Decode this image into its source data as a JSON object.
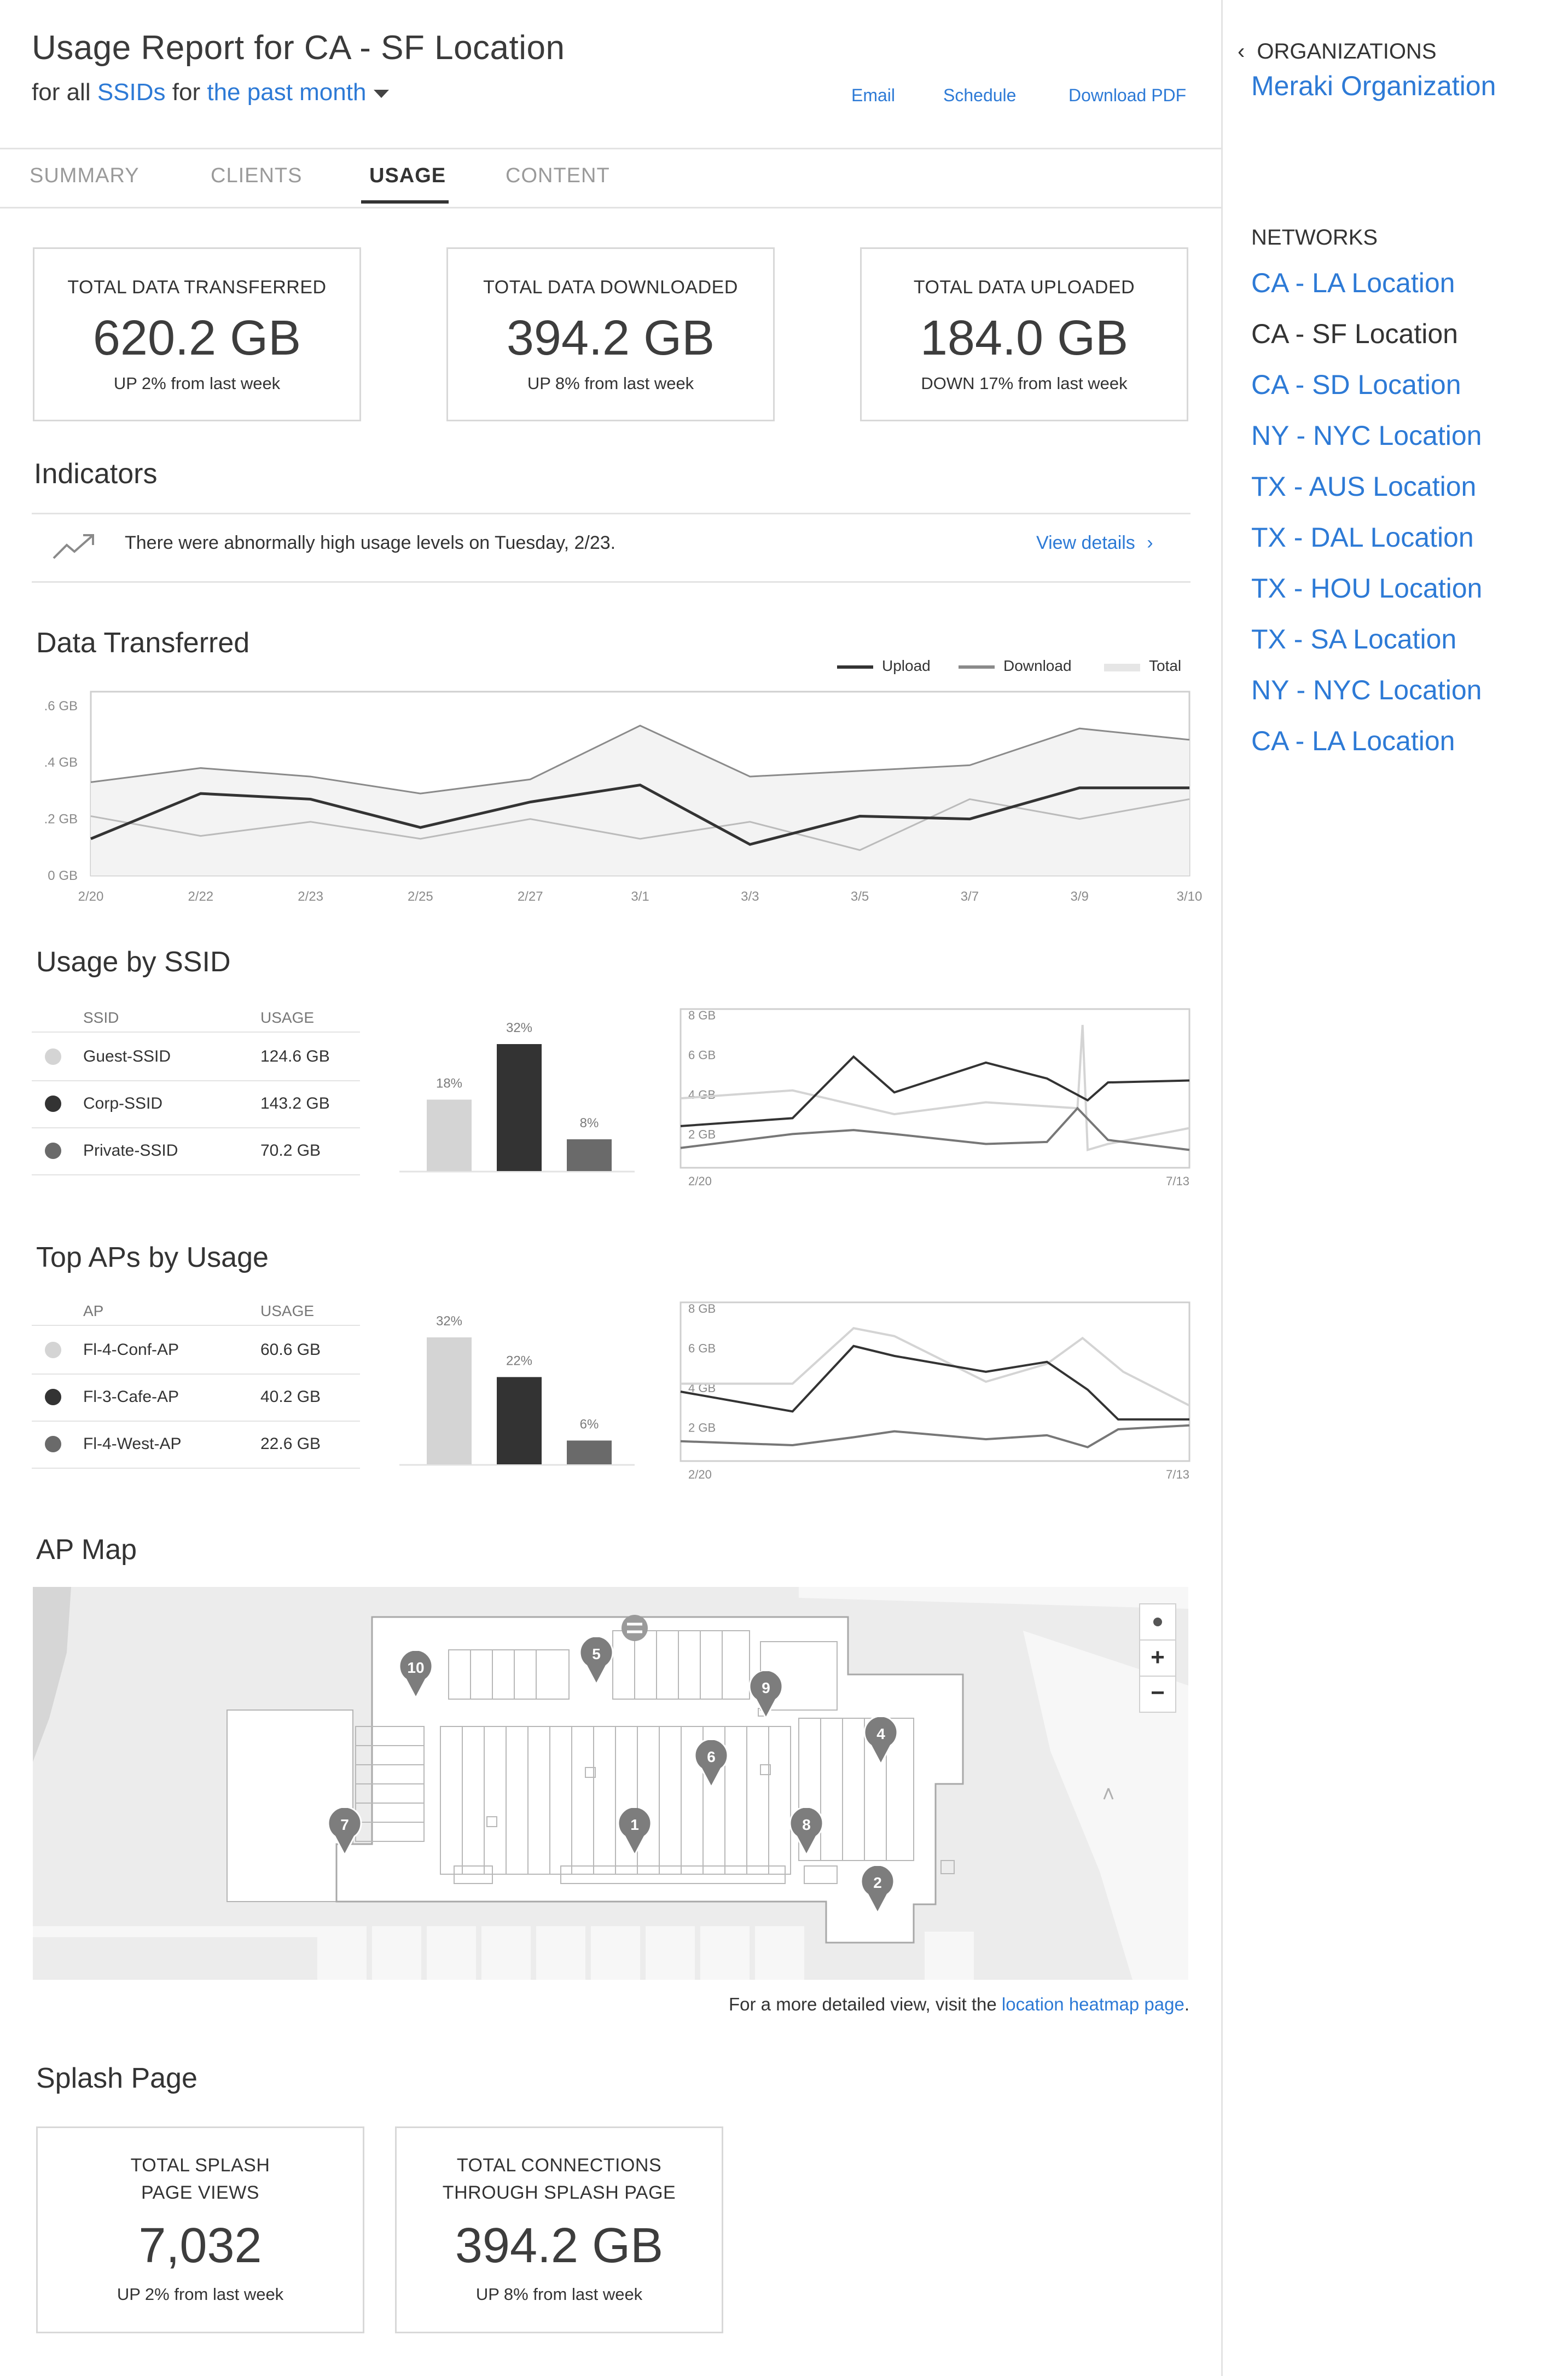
{
  "header": {
    "title": "Usage Report for CA - SF Location",
    "subtitle_prefix": "for all",
    "ssids_link": "SSIDs",
    "subtitle_mid": "for",
    "period_link": "the past month",
    "actions": {
      "email": "Email",
      "schedule": "Schedule",
      "download_pdf": "Download PDF"
    }
  },
  "tabs": [
    {
      "label": "SUMMARY",
      "active": false
    },
    {
      "label": "CLIENTS",
      "active": false
    },
    {
      "label": "USAGE",
      "active": true
    },
    {
      "label": "CONTENT",
      "active": false
    }
  ],
  "stats": [
    {
      "label": "TOTAL DATA TRANSFERRED",
      "value": "620.2 GB",
      "change": "UP 2% from last week"
    },
    {
      "label": "TOTAL DATA DOWNLOADED",
      "value": "394.2 GB",
      "change": "UP 8% from last week"
    },
    {
      "label": "TOTAL DATA UPLOADED",
      "value": "184.0 GB",
      "change": "DOWN 17% from last week"
    }
  ],
  "indicators": {
    "title": "Indicators",
    "icon": "trend-up-icon",
    "text": "There were abnormally high usage levels on Tuesday, 2/23.",
    "link": "View details"
  },
  "data_transferred": {
    "title": "Data Transferred",
    "legend": {
      "upload": "Upload",
      "download": "Download",
      "total": "Total"
    }
  },
  "usage_by_ssid": {
    "title": "Usage by SSID",
    "col_name": "SSID",
    "col_usage": "USAGE",
    "rows": [
      {
        "name": "Guest-SSID",
        "usage": "124.6 GB",
        "color": "#d4d4d4"
      },
      {
        "name": "Corp-SSID",
        "usage": "143.2 GB",
        "color": "#333333"
      },
      {
        "name": "Private-SSID",
        "usage": "70.2 GB",
        "color": "#6a6a6a"
      }
    ]
  },
  "top_aps": {
    "title": "Top APs by Usage",
    "col_name": "AP",
    "col_usage": "USAGE",
    "rows": [
      {
        "name": "Fl-4-Conf-AP",
        "usage": "60.6 GB",
        "color": "#d4d4d4"
      },
      {
        "name": "Fl-3-Cafe-AP",
        "usage": "40.2 GB",
        "color": "#333333"
      },
      {
        "name": "Fl-4-West-AP",
        "usage": "22.6 GB",
        "color": "#6a6a6a"
      }
    ]
  },
  "ap_map": {
    "title": "AP Map",
    "pins": [
      "1",
      "2",
      "4",
      "5",
      "6",
      "7",
      "8",
      "9",
      "10"
    ],
    "controls": {
      "locate": "locate-icon",
      "zoom_in": "+",
      "zoom_out": "−"
    },
    "note_prefix": "For a more detailed view, visit the",
    "note_link": "location heatmap page",
    "note_suffix": "."
  },
  "splash": {
    "title": "Splash Page",
    "stats": [
      {
        "label_line1": "TOTAL SPLASH",
        "label_line2": "PAGE VIEWS",
        "value": "7,032",
        "change": "UP 2% from last week"
      },
      {
        "label_line1": "TOTAL CONNECTIONS",
        "label_line2": "THROUGH SPLASH PAGE",
        "value": "394.2 GB",
        "change": "UP 8% from last week"
      }
    ]
  },
  "sidebar": {
    "back_label": "ORGANIZATIONS",
    "org_name": "Meraki Organization",
    "networks_label": "NETWORKS",
    "networks": [
      {
        "name": "CA - LA Location",
        "current": false
      },
      {
        "name": "CA - SF Location",
        "current": true
      },
      {
        "name": "CA - SD Location",
        "current": false
      },
      {
        "name": "NY - NYC Location",
        "current": false
      },
      {
        "name": "TX - AUS Location",
        "current": false
      },
      {
        "name": "TX - DAL Location",
        "current": false
      },
      {
        "name": "TX - HOU Location",
        "current": false
      },
      {
        "name": "TX - SA Location",
        "current": false
      },
      {
        "name": "NY - NYC Location",
        "current": false
      },
      {
        "name": "CA - LA Location",
        "current": false
      }
    ]
  },
  "chart_data": [
    {
      "type": "line",
      "title": "Data Transferred",
      "y_tick_labels": [
        ".6 GB",
        ".4 GB",
        ".2 GB",
        "0 GB"
      ],
      "y_ticks": [
        0.6,
        0.4,
        0.2,
        0
      ],
      "ylim": [
        0,
        0.65
      ],
      "x_tick_labels": [
        "2/20",
        "2/22",
        "2/23",
        "2/25",
        "2/27",
        "3/1",
        "3/3",
        "3/5",
        "3/7",
        "3/9",
        "3/10"
      ],
      "legend_position": "top-right",
      "series": [
        {
          "name": "Upload",
          "color": "#333333",
          "values": [
            0.13,
            0.29,
            0.27,
            0.17,
            0.26,
            0.32,
            0.11,
            0.21,
            0.2,
            0.31,
            0.31
          ]
        },
        {
          "name": "Download",
          "color": "#bbbbbb",
          "values": [
            0.21,
            0.14,
            0.19,
            0.13,
            0.2,
            0.13,
            0.19,
            0.09,
            0.27,
            0.2,
            0.27
          ]
        },
        {
          "name": "Total",
          "color": "#8a8a8a",
          "fill": "#f3f3f3",
          "values": [
            0.33,
            0.38,
            0.35,
            0.29,
            0.34,
            0.53,
            0.35,
            0.37,
            0.39,
            0.52,
            0.48
          ]
        }
      ]
    },
    {
      "type": "bar",
      "title": "Usage by SSID share",
      "categories": [
        "Guest-SSID",
        "Corp-SSID",
        "Private-SSID"
      ],
      "values": [
        18,
        32,
        8
      ],
      "labels": [
        "18%",
        "32%",
        "8%"
      ],
      "colors": [
        "#d4d4d4",
        "#333333",
        "#6a6a6a"
      ]
    },
    {
      "type": "line",
      "title": "Usage by SSID over time",
      "y_tick_labels": [
        "8 GB",
        "6 GB",
        "4 GB",
        "2 GB"
      ],
      "y_ticks": [
        8,
        6,
        4,
        2
      ],
      "ylim": [
        0.3,
        8.3
      ],
      "x_tick_labels": [
        "2/20",
        "7/13"
      ],
      "series": [
        {
          "name": "Guest-SSID",
          "color": "#d4d4d4",
          "x": [
            0,
            0.22,
            0.42,
            0.6,
            0.78,
            0.79,
            0.8,
            0.84,
            0.86,
            1
          ],
          "values": [
            3.8,
            4.2,
            3.0,
            3.6,
            3.3,
            7.5,
            1.2,
            1.5,
            1.6,
            2.3
          ]
        },
        {
          "name": "Corp-SSID",
          "color": "#333333",
          "x": [
            0,
            0.22,
            0.34,
            0.42,
            0.6,
            0.72,
            0.8,
            0.84,
            1
          ],
          "values": [
            2.4,
            2.8,
            5.9,
            4.1,
            5.6,
            4.8,
            3.7,
            4.6,
            4.7
          ]
        },
        {
          "name": "Private-SSID",
          "color": "#777777",
          "x": [
            0,
            0.22,
            0.34,
            0.42,
            0.6,
            0.72,
            0.78,
            0.84,
            1
          ],
          "values": [
            1.3,
            2.0,
            2.2,
            2.0,
            1.5,
            1.6,
            3.3,
            1.7,
            1.2
          ]
        }
      ]
    },
    {
      "type": "bar",
      "title": "Top APs share",
      "categories": [
        "Fl-4-Conf-AP",
        "Fl-3-Cafe-AP",
        "Fl-4-West-AP"
      ],
      "values": [
        32,
        22,
        6
      ],
      "labels": [
        "32%",
        "22%",
        "6%"
      ],
      "colors": [
        "#d4d4d4",
        "#333333",
        "#6a6a6a"
      ]
    },
    {
      "type": "line",
      "title": "Top APs over time",
      "y_tick_labels": [
        "8 GB",
        "6 GB",
        "4 GB",
        "2 GB"
      ],
      "y_ticks": [
        8,
        6,
        4,
        2
      ],
      "ylim": [
        0.3,
        8.3
      ],
      "x_tick_labels": [
        "2/20",
        "7/13"
      ],
      "series": [
        {
          "name": "Fl-4-Conf-AP",
          "color": "#d4d4d4",
          "x": [
            0,
            0.22,
            0.34,
            0.42,
            0.6,
            0.72,
            0.79,
            0.87,
            1
          ],
          "values": [
            4.2,
            4.2,
            7.0,
            6.6,
            4.3,
            5.2,
            6.5,
            4.8,
            3.1
          ]
        },
        {
          "name": "Fl-3-Cafe-AP",
          "color": "#333333",
          "x": [
            0,
            0.22,
            0.34,
            0.42,
            0.6,
            0.72,
            0.8,
            0.86,
            1
          ],
          "values": [
            3.8,
            2.8,
            6.1,
            5.6,
            4.8,
            5.3,
            3.9,
            2.4,
            2.4
          ]
        },
        {
          "name": "Fl-4-West-AP",
          "color": "#777777",
          "x": [
            0,
            0.22,
            0.34,
            0.42,
            0.6,
            0.72,
            0.8,
            0.86,
            1
          ],
          "values": [
            1.3,
            1.1,
            1.5,
            1.8,
            1.4,
            1.6,
            1.0,
            1.9,
            2.1
          ]
        }
      ]
    }
  ]
}
